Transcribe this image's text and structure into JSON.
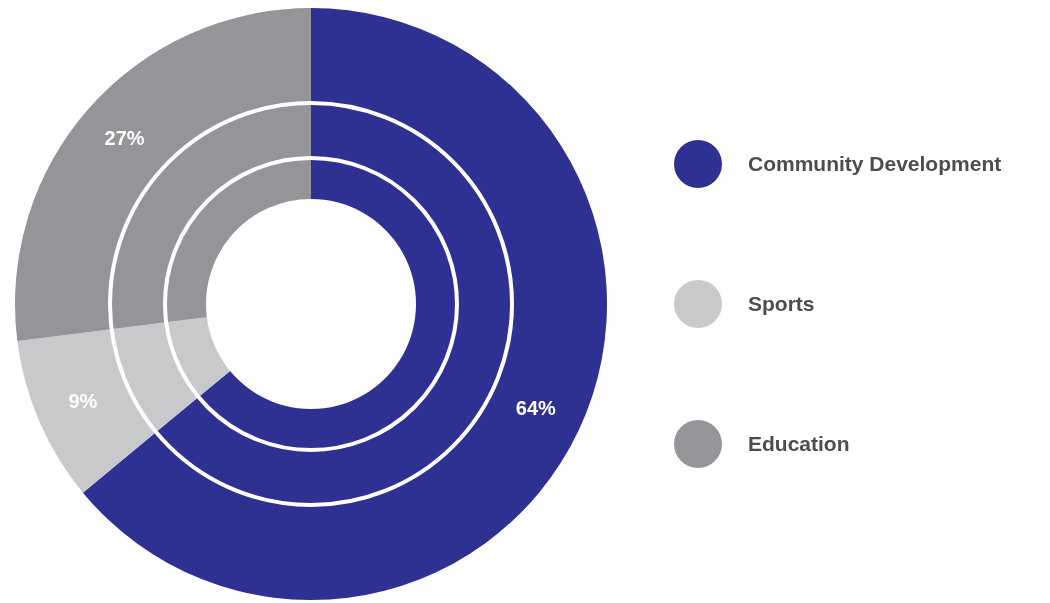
{
  "chart_data": {
    "type": "donut",
    "categories": [
      "Community Development",
      "Sports",
      "Education"
    ],
    "series": [
      {
        "values": [
          64,
          9,
          27
        ],
        "colors": [
          "#2e3192",
          "#c8c9cb",
          "#939598"
        ],
        "value_labels": [
          "64%",
          "9%",
          "27%"
        ]
      },
      {
        "values": [
          64,
          9,
          27
        ],
        "colors": [
          "#2e3192",
          "#c8c9cb",
          "#939598"
        ]
      },
      {
        "values": [
          64,
          9,
          27
        ],
        "colors": [
          "#2e3192",
          "#c8c9cb",
          "#939598"
        ]
      }
    ],
    "legend": "right"
  }
}
